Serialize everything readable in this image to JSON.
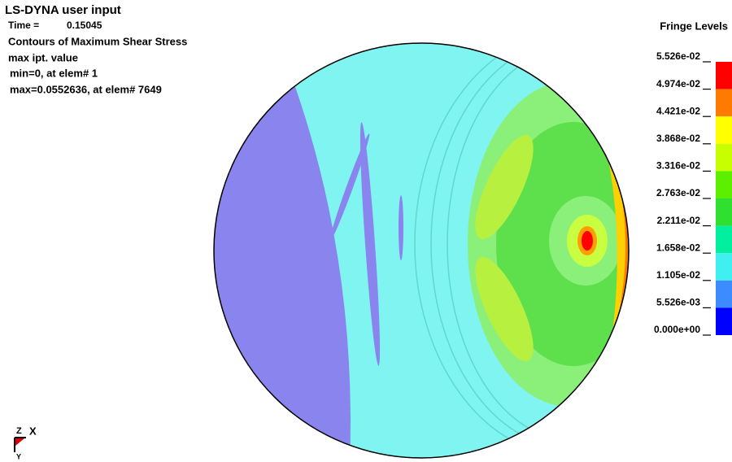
{
  "header": {
    "title": "LS-DYNA user input",
    "time_label": "Time =",
    "time_value": "0.15045",
    "lines": [
      "Contours of Maximum Shear Stress",
      "max ipt. value",
      "min=0, at elem# 1",
      "max=0.0552636, at elem# 7649"
    ]
  },
  "legend": {
    "title": "Fringe Levels",
    "levels": [
      "5.526e-02",
      "4.974e-02",
      "4.421e-02",
      "3.868e-02",
      "3.316e-02",
      "2.763e-02",
      "2.211e-02",
      "1.658e-02",
      "1.105e-02",
      "5.526e-03",
      "0.000e+00"
    ],
    "colors": [
      "#ff0000",
      "#ff7a00",
      "#ffff00",
      "#c8ff00",
      "#5cf000",
      "#30e030",
      "#00f0a0",
      "#40f0f0",
      "#3c8cff",
      "#0000ff"
    ]
  },
  "triad": {
    "z": "Z",
    "x": "X",
    "y": "Y"
  }
}
